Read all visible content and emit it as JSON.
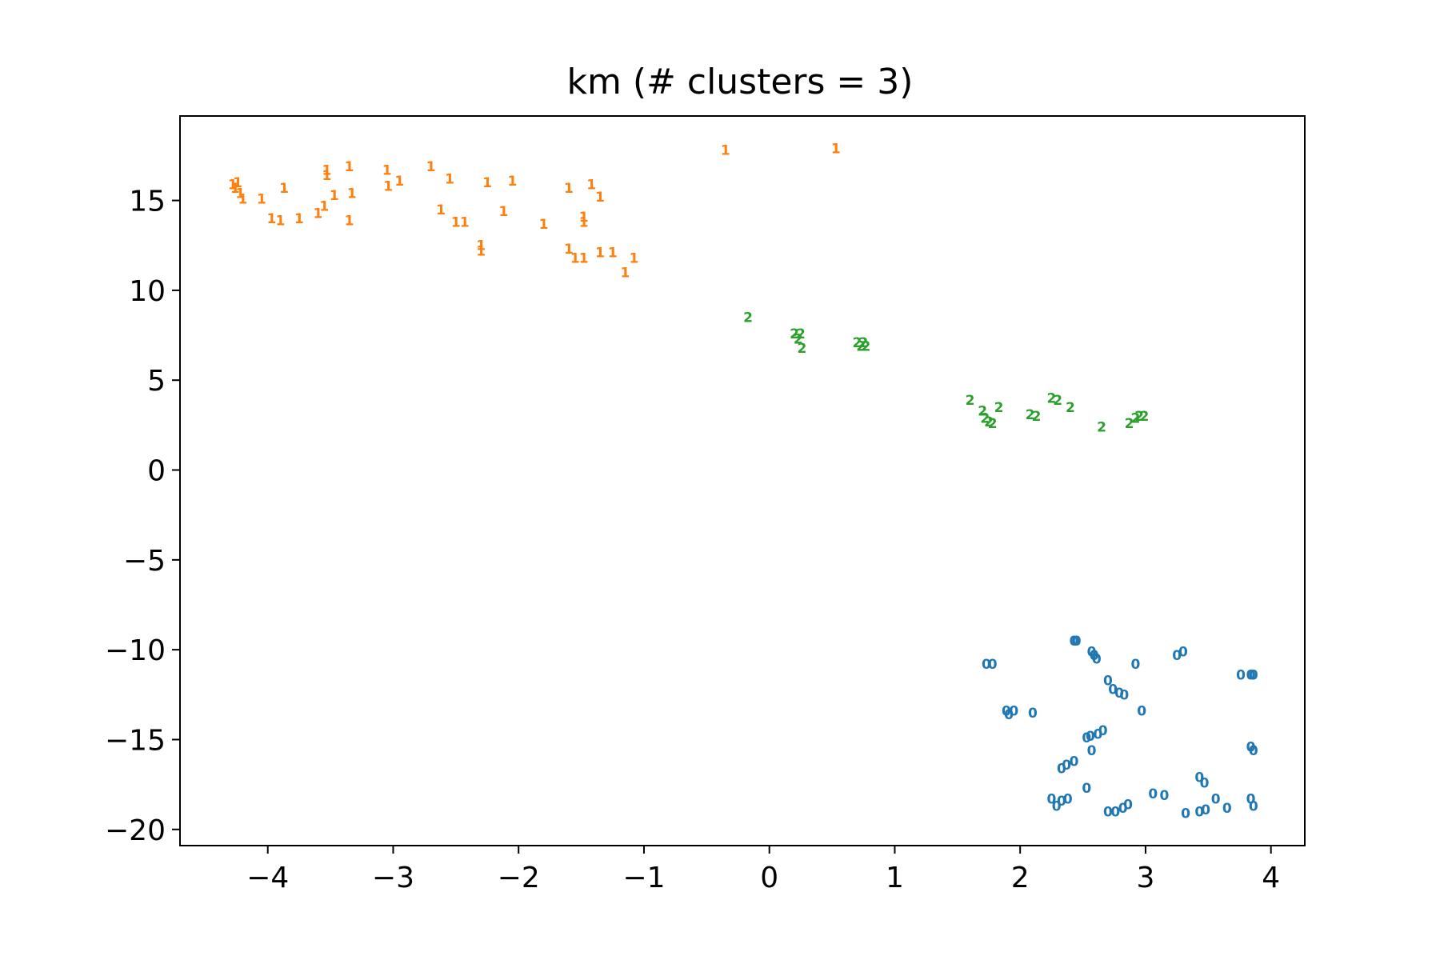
{
  "chart_data": {
    "type": "scatter",
    "title": "km (# clusters = 3)",
    "xlabel": "",
    "ylabel": "",
    "xlim": [
      -4.7,
      4.27
    ],
    "ylim": [
      -20.9,
      19.7
    ],
    "xticks": [
      -4,
      -3,
      -2,
      -1,
      0,
      1,
      2,
      3,
      4
    ],
    "xtick_labels": [
      "−4",
      "−3",
      "−2",
      "−1",
      "0",
      "1",
      "2",
      "3",
      "4"
    ],
    "yticks": [
      15,
      10,
      5,
      0,
      -5,
      -10,
      -15,
      -20
    ],
    "ytick_labels": [
      "15",
      "10",
      "5",
      "0",
      "−5",
      "−10",
      "−15",
      "−20"
    ],
    "grid": false,
    "series": [
      {
        "marker": "0",
        "color": "#1f77b4",
        "points": [
          [
            2.43,
            -9.5
          ],
          [
            2.45,
            -9.5
          ],
          [
            2.57,
            -10.1
          ],
          [
            2.59,
            -10.3
          ],
          [
            2.61,
            -10.5
          ],
          [
            3.25,
            -10.3
          ],
          [
            3.3,
            -10.1
          ],
          [
            1.73,
            -10.8
          ],
          [
            1.78,
            -10.8
          ],
          [
            2.92,
            -10.8
          ],
          [
            3.76,
            -11.4
          ],
          [
            3.84,
            -11.4
          ],
          [
            3.86,
            -11.4
          ],
          [
            2.7,
            -11.7
          ],
          [
            2.74,
            -12.2
          ],
          [
            2.79,
            -12.4
          ],
          [
            2.83,
            -12.5
          ],
          [
            1.89,
            -13.4
          ],
          [
            1.91,
            -13.6
          ],
          [
            1.95,
            -13.4
          ],
          [
            2.1,
            -13.5
          ],
          [
            2.97,
            -13.4
          ],
          [
            2.53,
            -14.9
          ],
          [
            2.56,
            -14.8
          ],
          [
            2.62,
            -14.7
          ],
          [
            2.66,
            -14.5
          ],
          [
            2.57,
            -15.6
          ],
          [
            3.84,
            -15.4
          ],
          [
            3.86,
            -15.6
          ],
          [
            2.33,
            -16.6
          ],
          [
            2.37,
            -16.4
          ],
          [
            2.43,
            -16.2
          ],
          [
            3.43,
            -17.1
          ],
          [
            3.47,
            -17.4
          ],
          [
            2.53,
            -17.7
          ],
          [
            2.25,
            -18.3
          ],
          [
            2.29,
            -18.7
          ],
          [
            2.33,
            -18.4
          ],
          [
            2.38,
            -18.3
          ],
          [
            3.06,
            -18.0
          ],
          [
            3.15,
            -18.1
          ],
          [
            3.56,
            -18.3
          ],
          [
            3.84,
            -18.3
          ],
          [
            3.86,
            -18.7
          ],
          [
            2.7,
            -19.0
          ],
          [
            2.76,
            -19.0
          ],
          [
            2.82,
            -18.8
          ],
          [
            2.86,
            -18.6
          ],
          [
            3.32,
            -19.1
          ],
          [
            3.43,
            -19.0
          ],
          [
            3.48,
            -18.9
          ],
          [
            3.65,
            -18.8
          ]
        ]
      },
      {
        "marker": "1",
        "color": "#ff7f0e",
        "points": [
          [
            -4.28,
            15.9
          ],
          [
            -4.26,
            15.7
          ],
          [
            -4.24,
            16.0
          ],
          [
            -4.22,
            15.4
          ],
          [
            -4.2,
            15.1
          ],
          [
            -4.05,
            15.1
          ],
          [
            -3.87,
            15.7
          ],
          [
            -3.97,
            14.0
          ],
          [
            -3.9,
            13.9
          ],
          [
            -3.75,
            14.0
          ],
          [
            -3.6,
            14.3
          ],
          [
            -3.55,
            14.7
          ],
          [
            -3.53,
            16.7
          ],
          [
            -3.53,
            16.4
          ],
          [
            -3.47,
            15.3
          ],
          [
            -3.35,
            16.9
          ],
          [
            -3.33,
            15.4
          ],
          [
            -3.35,
            13.9
          ],
          [
            -3.05,
            16.7
          ],
          [
            -3.04,
            15.8
          ],
          [
            -2.95,
            16.1
          ],
          [
            -2.7,
            16.9
          ],
          [
            -2.62,
            14.5
          ],
          [
            -2.55,
            16.2
          ],
          [
            -2.5,
            13.8
          ],
          [
            -2.43,
            13.8
          ],
          [
            -2.3,
            12.5
          ],
          [
            -2.3,
            12.2
          ],
          [
            -2.25,
            16.0
          ],
          [
            -2.12,
            14.4
          ],
          [
            -2.05,
            16.1
          ],
          [
            -1.8,
            13.7
          ],
          [
            -1.6,
            15.7
          ],
          [
            -1.6,
            12.3
          ],
          [
            -1.55,
            11.8
          ],
          [
            -1.48,
            11.8
          ],
          [
            -1.48,
            14.1
          ],
          [
            -1.48,
            13.8
          ],
          [
            -1.42,
            15.9
          ],
          [
            -1.35,
            15.2
          ],
          [
            -1.35,
            12.1
          ],
          [
            -1.25,
            12.1
          ],
          [
            -1.15,
            11.0
          ],
          [
            -1.08,
            11.8
          ],
          [
            -0.35,
            17.8
          ],
          [
            0.53,
            17.9
          ]
        ]
      },
      {
        "marker": "2",
        "color": "#2ca02c",
        "points": [
          [
            -0.17,
            8.5
          ],
          [
            0.2,
            7.6
          ],
          [
            0.25,
            7.6
          ],
          [
            0.23,
            7.3
          ],
          [
            0.26,
            6.8
          ],
          [
            0.7,
            7.1
          ],
          [
            0.73,
            6.9
          ],
          [
            0.75,
            7.1
          ],
          [
            0.77,
            6.9
          ],
          [
            1.6,
            3.9
          ],
          [
            1.7,
            3.3
          ],
          [
            1.72,
            2.9
          ],
          [
            1.75,
            2.7
          ],
          [
            1.78,
            2.6
          ],
          [
            1.83,
            3.5
          ],
          [
            2.08,
            3.1
          ],
          [
            2.13,
            3.0
          ],
          [
            2.25,
            4.0
          ],
          [
            2.3,
            3.9
          ],
          [
            2.4,
            3.5
          ],
          [
            2.65,
            2.4
          ],
          [
            2.87,
            2.6
          ],
          [
            2.92,
            2.9
          ],
          [
            2.95,
            3.0
          ],
          [
            2.99,
            3.0
          ]
        ]
      }
    ]
  }
}
